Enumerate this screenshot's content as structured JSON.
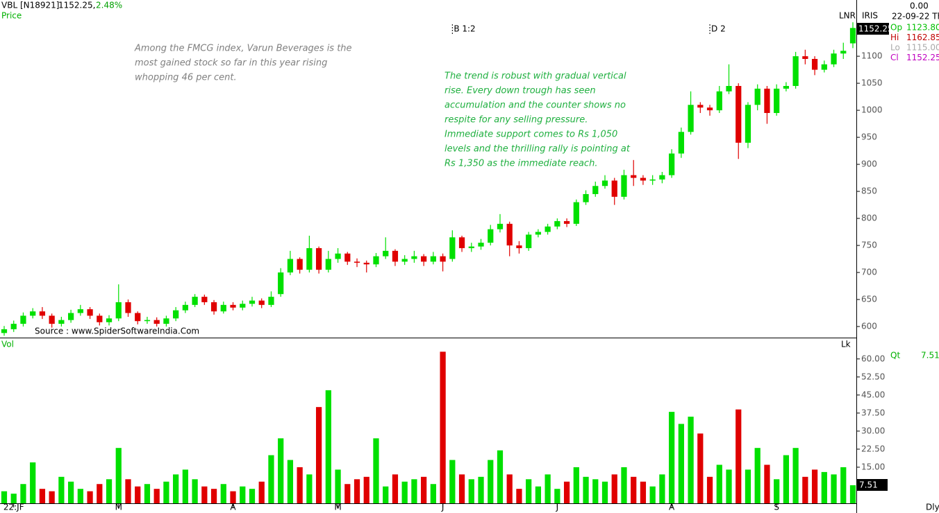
{
  "chart_data": {
    "type": "candlestick",
    "symbol": "VBL [N18921]",
    "last": "1152.25,",
    "change": "2.48%",
    "panel_label": "Price",
    "annotation_left": [
      "Among the FMCG index, Varun Beverages is the",
      "most gained stock so far in this year rising",
      "whopping 46 per cent."
    ],
    "annotation_right": [
      "The trend is robust with gradual vertical",
      "rise. Every down trough has seen",
      "accumulation and the counter shows no",
      "respite for any selling pressure.",
      "Immediate support comes to Rs 1,050",
      "levels and the thrilling rally is pointing at",
      "Rs 1,350 as the immediate reach."
    ],
    "source": "Source : www.SpiderSoftwareIndia.Com",
    "events": [
      {
        "index": 47,
        "label": "B 1:2"
      },
      {
        "index": 74,
        "label": "D 2"
      }
    ],
    "top_right": {
      "lnr": "LNR",
      "iris": "IRIS",
      "zero": "0.00",
      "date": "22-09-22 Th"
    },
    "quote_panel": [
      {
        "label": "Op",
        "value": "1123.80",
        "color": "#00c000"
      },
      {
        "label": "Hi",
        "value": "1162.85",
        "color": "#c00000"
      },
      {
        "label": "Lo",
        "value": "1115.00",
        "color": "#aaaaaa"
      },
      {
        "label": "Cl",
        "value": "1152.25",
        "color": "#c000c0"
      }
    ],
    "price_tag": "1152.25",
    "up_color": "#00e000",
    "down_color": "#e00000",
    "ylim": [
      579.5,
      1204
    ],
    "yticks": [
      600,
      650,
      700,
      750,
      800,
      850,
      900,
      950,
      1000,
      1050,
      1100
    ],
    "open": [
      588,
      595,
      605,
      620,
      628,
      620,
      605,
      612,
      625,
      632,
      620,
      608,
      615,
      645,
      625,
      610,
      612,
      605,
      615,
      630,
      640,
      655,
      645,
      628,
      640,
      635,
      642,
      648,
      640,
      660,
      700,
      725,
      705,
      745,
      705,
      725,
      735,
      720,
      718,
      715,
      730,
      740,
      720,
      725,
      730,
      720,
      730,
      725,
      765,
      745,
      748,
      755,
      780,
      790,
      750,
      745,
      770,
      775,
      785,
      795,
      790,
      830,
      845,
      860,
      870,
      840,
      880,
      875,
      870,
      872,
      880,
      920,
      960,
      1010,
      1005,
      1000,
      1035,
      1045,
      940,
      1010,
      1040,
      995,
      1040,
      1045,
      1100,
      1095,
      1075,
      1085,
      1105,
      1123.8
    ],
    "high": [
      601,
      611,
      626,
      634,
      636,
      624,
      618,
      631,
      640,
      636,
      624,
      621,
      678,
      650,
      628,
      618,
      617,
      620,
      636,
      646,
      660,
      659,
      649,
      646,
      645,
      648,
      655,
      652,
      665,
      708,
      740,
      728,
      768,
      748,
      740,
      745,
      738,
      726,
      722,
      736,
      765,
      743,
      732,
      740,
      734,
      738,
      735,
      778,
      768,
      755,
      762,
      788,
      808,
      794,
      758,
      775,
      780,
      790,
      800,
      800,
      835,
      852,
      868,
      880,
      875,
      890,
      908,
      880,
      880,
      886,
      928,
      968,
      1035,
      1015,
      1010,
      1045,
      1085,
      1050,
      1015,
      1048,
      1045,
      1048,
      1052,
      1108,
      1112,
      1100,
      1092,
      1112,
      1125,
      1162.85
    ],
    "low": [
      583,
      590,
      600,
      615,
      614,
      598,
      600,
      607,
      620,
      614,
      602,
      602,
      610,
      618,
      604,
      605,
      600,
      600,
      610,
      625,
      636,
      640,
      622,
      624,
      630,
      630,
      637,
      634,
      636,
      655,
      695,
      698,
      700,
      698,
      700,
      718,
      714,
      710,
      700,
      710,
      725,
      712,
      714,
      718,
      712,
      715,
      702,
      720,
      738,
      738,
      742,
      750,
      774,
      730,
      735,
      740,
      765,
      770,
      780,
      784,
      786,
      825,
      840,
      855,
      825,
      835,
      860,
      862,
      862,
      865,
      875,
      912,
      955,
      995,
      990,
      995,
      1030,
      910,
      930,
      1000,
      975,
      990,
      1035,
      1040,
      1085,
      1065,
      1070,
      1080,
      1095,
      1115
    ],
    "close": [
      595,
      605,
      620,
      628,
      620,
      605,
      612,
      625,
      632,
      620,
      608,
      615,
      645,
      625,
      610,
      612,
      605,
      615,
      630,
      640,
      655,
      645,
      628,
      640,
      635,
      642,
      648,
      640,
      655,
      700,
      725,
      705,
      745,
      705,
      725,
      735,
      720,
      718,
      715,
      730,
      740,
      720,
      725,
      730,
      720,
      730,
      720,
      765,
      745,
      748,
      755,
      780,
      790,
      750,
      745,
      770,
      775,
      785,
      795,
      790,
      830,
      845,
      860,
      870,
      840,
      880,
      875,
      870,
      872,
      880,
      920,
      960,
      1010,
      1005,
      1000,
      1035,
      1045,
      940,
      1010,
      1040,
      995,
      1040,
      1045,
      1100,
      1095,
      1075,
      1085,
      1105,
      1110,
      1152.25
    ],
    "volume_label": "Vol",
    "volume_unit": "Lk",
    "qt_label": "Qt",
    "qt_value": "7.51",
    "volume_tag": "7.51",
    "volume_ylim": [
      0,
      68
    ],
    "volume_yticks": [
      {
        "value": 15,
        "label": "15.00"
      },
      {
        "value": 22.5,
        "label": "22.50"
      },
      {
        "value": 30,
        "label": "30.00"
      },
      {
        "value": 37.5,
        "label": "37.50"
      },
      {
        "value": 45,
        "label": "45.00"
      },
      {
        "value": 52.5,
        "label": "52.50"
      },
      {
        "value": 60,
        "label": "60.00"
      }
    ],
    "volume": [
      5,
      4,
      8,
      17,
      6,
      5,
      11,
      9,
      6,
      5,
      8,
      10,
      23,
      10,
      7,
      8,
      6,
      9,
      12,
      14,
      10,
      7,
      6,
      8,
      5,
      7,
      6,
      9,
      20,
      27,
      18,
      15,
      12,
      40,
      47,
      14,
      8,
      10,
      11,
      27,
      7,
      12,
      9,
      10,
      11,
      8,
      63,
      18,
      12,
      10,
      11,
      18,
      22,
      12,
      6,
      10,
      7,
      12,
      6,
      9,
      15,
      11,
      10,
      9,
      12,
      15,
      11,
      9,
      7,
      12,
      38,
      33,
      36,
      29,
      11,
      16,
      14,
      39,
      14,
      23,
      16,
      10,
      20,
      23,
      11,
      14,
      13,
      12,
      15,
      7.51
    ],
    "x_labels": [
      {
        "index": 1,
        "label": "22:JF"
      },
      {
        "index": 12,
        "label": "M"
      },
      {
        "index": 24,
        "label": "A"
      },
      {
        "index": 35,
        "label": "M"
      },
      {
        "index": 46,
        "label": "J"
      },
      {
        "index": 58,
        "label": "J"
      },
      {
        "index": 70,
        "label": "A"
      },
      {
        "index": 81,
        "label": "S"
      }
    ],
    "interval": "Dly"
  }
}
